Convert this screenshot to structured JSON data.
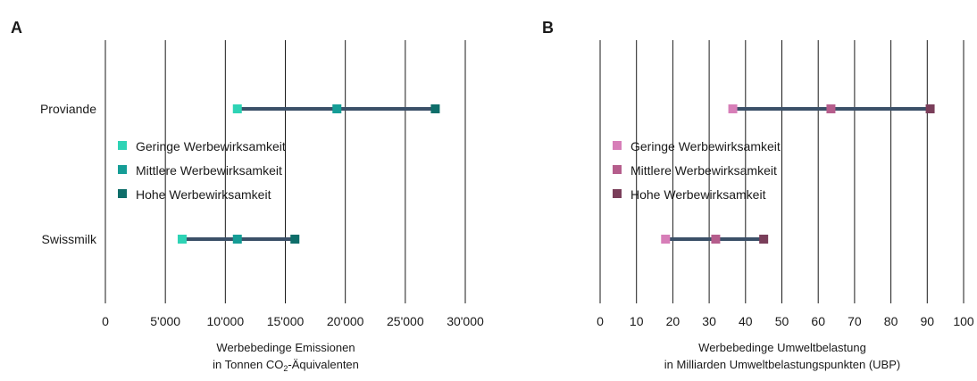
{
  "chart_data": [
    {
      "type": "dumbbell",
      "panel_label": "A",
      "categories": [
        "Proviande",
        "Swissmilk"
      ],
      "series": [
        {
          "name": "Geringe Werbewirksamkeit",
          "values": [
            11000,
            6400
          ],
          "color": "#2ed3b5"
        },
        {
          "name": "Mittlere Werbewirksamkeit",
          "values": [
            19300,
            11000
          ],
          "color": "#159d96"
        },
        {
          "name": "Hohe Werbewirksamkeit",
          "values": [
            27500,
            15800
          ],
          "color": "#0e6e6a"
        }
      ],
      "range_line_color": "#3b5068",
      "xlim": [
        0,
        30000
      ],
      "xticks": [
        0,
        5000,
        10000,
        15000,
        20000,
        25000,
        30000
      ],
      "xtick_labels": [
        "0",
        "5'000",
        "10'000",
        "15'000",
        "20'000",
        "25'000",
        "30'000"
      ],
      "xlabel_line1": "Werbebedinge Emissionen",
      "xlabel_line2_pre": "in Tonnen CO",
      "xlabel_line2_sub": "2",
      "xlabel_line2_post": "-Äquivalenten",
      "legend_position": "center-left",
      "grid": "vertical"
    },
    {
      "type": "dumbbell",
      "panel_label": "B",
      "categories": [
        "Proviande",
        "Swissmilk"
      ],
      "series": [
        {
          "name": "Geringe Werbewirksamkeit",
          "values": [
            36.5,
            18
          ],
          "color": "#d77eb8"
        },
        {
          "name": "Mittlere Werbewirksamkeit",
          "values": [
            63.5,
            31.8
          ],
          "color": "#b55d8c"
        },
        {
          "name": "Hohe Werbewirksamkeit",
          "values": [
            90.8,
            45
          ],
          "color": "#7a3e5a"
        }
      ],
      "range_line_color": "#3b5068",
      "xlim": [
        0,
        100
      ],
      "xticks": [
        0,
        10,
        20,
        30,
        40,
        50,
        60,
        70,
        80,
        90,
        100
      ],
      "xtick_labels": [
        "0",
        "10",
        "20",
        "30",
        "40",
        "50",
        "60",
        "70",
        "80",
        "90",
        "100"
      ],
      "xlabel_line1": "Werbebedinge Umweltbelastung",
      "xlabel_line2": "in Milliarden Umweltbelastungspunkten (UBP)",
      "legend_position": "center-left",
      "grid": "vertical"
    }
  ]
}
